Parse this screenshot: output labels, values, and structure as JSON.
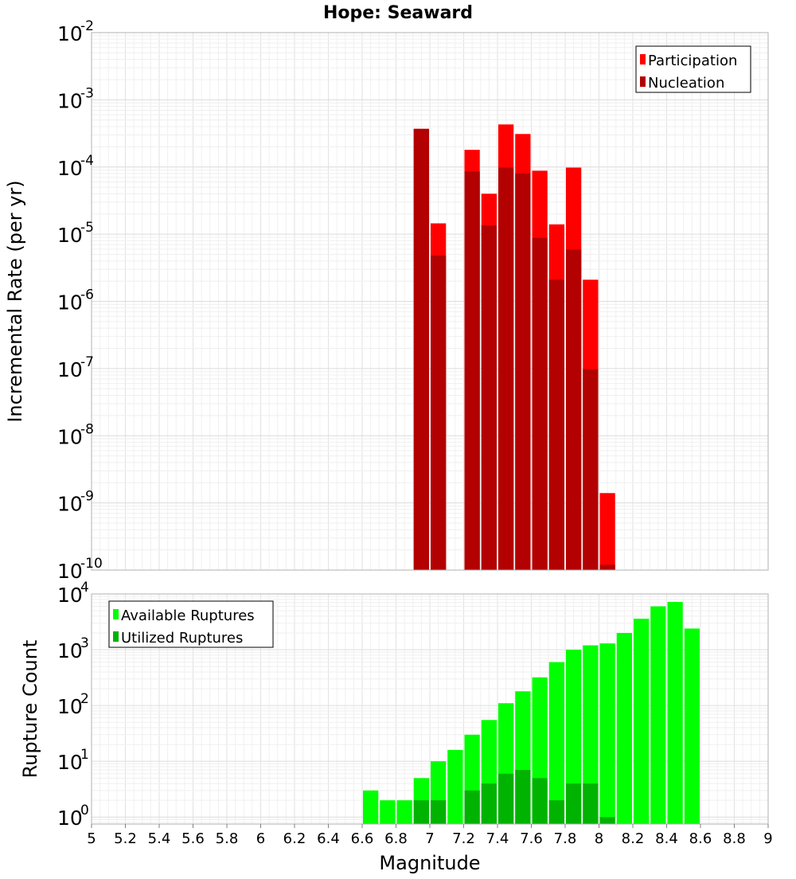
{
  "chart_data": [
    {
      "type": "bar",
      "title": "Hope: Seaward",
      "xlabel": "Magnitude",
      "ylabel": "Incremental Rate (per yr)",
      "yscale": "log",
      "ylim": [
        1e-10,
        0.01
      ],
      "xlim": [
        5,
        9
      ],
      "grid": true,
      "legend_position": "top-right",
      "legend": [
        {
          "name": "Participation",
          "color": "#ff0000"
        },
        {
          "name": "Nucleation",
          "color": "#b30000"
        }
      ],
      "x": [
        6.95,
        7.05,
        7.25,
        7.35,
        7.45,
        7.55,
        7.65,
        7.75,
        7.85,
        7.95,
        8.05
      ],
      "series": [
        {
          "name": "Participation",
          "color": "#ff0000",
          "values": [
            0.00037,
            1.45e-05,
            0.00018,
            4e-05,
            0.00043,
            0.00031,
            8.8e-05,
            1.4e-05,
            9.8e-05,
            2.1e-06,
            1.4e-09
          ]
        },
        {
          "name": "Nucleation",
          "color": "#b30000",
          "values": [
            0.00037,
            4.8e-06,
            8.6e-05,
            1.35e-05,
            9.8e-05,
            8e-05,
            8.8e-06,
            2.1e-06,
            5.9e-06,
            9.8e-08,
            1.2e-10
          ]
        }
      ]
    },
    {
      "type": "bar",
      "xlabel": "Magnitude",
      "ylabel": "Rupture Count",
      "yscale": "log",
      "ylim": [
        0.75,
        10000
      ],
      "xlim": [
        5,
        9
      ],
      "grid": true,
      "legend_position": "top-left",
      "legend": [
        {
          "name": "Available Ruptures",
          "color": "#00ff00"
        },
        {
          "name": "Utilized Ruptures",
          "color": "#00b300"
        }
      ],
      "x": [
        6.65,
        6.75,
        6.85,
        6.95,
        7.05,
        7.15,
        7.25,
        7.35,
        7.45,
        7.55,
        7.65,
        7.75,
        7.85,
        7.95,
        8.05,
        8.15,
        8.25,
        8.35,
        8.45,
        8.55
      ],
      "series": [
        {
          "name": "Available Ruptures",
          "color": "#00ff00",
          "values": [
            3,
            2,
            2,
            5,
            10,
            16,
            30,
            55,
            110,
            180,
            320,
            600,
            1000,
            1200,
            1300,
            2000,
            3600,
            6000,
            7200,
            2400
          ]
        },
        {
          "name": "Utilized Ruptures",
          "color": "#00b300",
          "values": [
            0,
            0,
            0,
            2,
            2,
            0,
            3,
            4,
            6,
            7,
            5,
            2,
            4,
            4,
            1,
            0,
            0,
            0,
            0,
            0
          ]
        }
      ],
      "xticks": [
        "5",
        "5.2",
        "5.4",
        "5.6",
        "5.8",
        "6",
        "6.2",
        "6.4",
        "6.6",
        "6.8",
        "7",
        "7.2",
        "7.4",
        "7.6",
        "7.8",
        "8",
        "8.2",
        "8.4",
        "8.6",
        "8.8",
        "9"
      ]
    }
  ]
}
